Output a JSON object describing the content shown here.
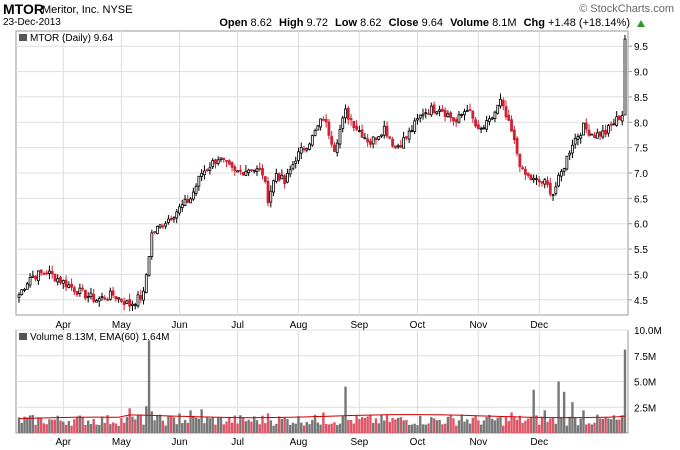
{
  "header": {
    "symbol": "MTOR",
    "company": "Meritor, Inc.",
    "exchange": "NYSE",
    "date": "23-Dec-2013",
    "brand": "© StockCharts.com",
    "open_label": "Open",
    "open": "8.62",
    "high_label": "High",
    "high": "9.72",
    "low_label": "Low",
    "low": "8.62",
    "close_label": "Close",
    "close": "9.64",
    "volume_label": "Volume",
    "volume": "8.1M",
    "chg_label": "Chg",
    "chg": "+1.48 (+18.14%)"
  },
  "price_legend": "MTOR (Daily) 9.64",
  "volume_legend": "Volume 8.13M, EMA(60) 1.64M",
  "colors": {
    "up": "#000000",
    "down": "#cc2233",
    "vol_up": "#777777",
    "vol_down": "#dd5566",
    "ema": "#cc0000",
    "grid": "#dddddd"
  },
  "chart_data": {
    "type": "line",
    "price_axis": {
      "ylim": [
        4.2,
        9.8
      ],
      "ticks": [
        "4.5",
        "5.0",
        "5.5",
        "6.0",
        "6.5",
        "7.0",
        "7.5",
        "8.0",
        "8.5",
        "9.0",
        "9.5"
      ]
    },
    "volume_axis": {
      "ylim": [
        0,
        10
      ],
      "ticks": [
        "2.5M",
        "5.0M",
        "7.5M",
        "10.0M"
      ]
    },
    "months": [
      "Apr",
      "May",
      "Jun",
      "Jul",
      "Aug",
      "Sep",
      "Oct",
      "Nov",
      "Dec"
    ],
    "close_keypoints": [
      {
        "i": 0,
        "v": 4.6
      },
      {
        "i": 4,
        "v": 4.95
      },
      {
        "i": 10,
        "v": 5.05
      },
      {
        "i": 16,
        "v": 4.85
      },
      {
        "i": 22,
        "v": 4.65
      },
      {
        "i": 28,
        "v": 4.5
      },
      {
        "i": 34,
        "v": 4.6
      },
      {
        "i": 40,
        "v": 4.4
      },
      {
        "i": 45,
        "v": 4.6
      },
      {
        "i": 48,
        "v": 5.8
      },
      {
        "i": 52,
        "v": 6.0
      },
      {
        "i": 58,
        "v": 6.3
      },
      {
        "i": 62,
        "v": 6.5
      },
      {
        "i": 66,
        "v": 7.0
      },
      {
        "i": 72,
        "v": 7.3
      },
      {
        "i": 78,
        "v": 7.0
      },
      {
        "i": 84,
        "v": 7.1
      },
      {
        "i": 88,
        "v": 7.0
      },
      {
        "i": 90,
        "v": 6.5
      },
      {
        "i": 93,
        "v": 7.0
      },
      {
        "i": 96,
        "v": 6.8
      },
      {
        "i": 100,
        "v": 7.3
      },
      {
        "i": 106,
        "v": 7.7
      },
      {
        "i": 110,
        "v": 8.1
      },
      {
        "i": 114,
        "v": 7.5
      },
      {
        "i": 118,
        "v": 8.2
      },
      {
        "i": 122,
        "v": 7.9
      },
      {
        "i": 127,
        "v": 7.6
      },
      {
        "i": 132,
        "v": 7.9
      },
      {
        "i": 136,
        "v": 7.5
      },
      {
        "i": 140,
        "v": 7.7
      },
      {
        "i": 146,
        "v": 8.2
      },
      {
        "i": 152,
        "v": 8.3
      },
      {
        "i": 158,
        "v": 8.0
      },
      {
        "i": 162,
        "v": 8.3
      },
      {
        "i": 166,
        "v": 7.8
      },
      {
        "i": 170,
        "v": 8.0
      },
      {
        "i": 174,
        "v": 8.4
      },
      {
        "i": 178,
        "v": 7.8
      },
      {
        "i": 182,
        "v": 7.0
      },
      {
        "i": 186,
        "v": 6.85
      },
      {
        "i": 190,
        "v": 6.8
      },
      {
        "i": 193,
        "v": 6.6
      },
      {
        "i": 196,
        "v": 7.0
      },
      {
        "i": 200,
        "v": 7.6
      },
      {
        "i": 204,
        "v": 7.9
      },
      {
        "i": 208,
        "v": 7.75
      },
      {
        "i": 212,
        "v": 7.8
      },
      {
        "i": 216,
        "v": 8.05
      },
      {
        "i": 218,
        "v": 8.16
      },
      {
        "i": 219,
        "v": 9.64
      }
    ],
    "volume_spikes": [
      {
        "i": 40,
        "v": 2.4
      },
      {
        "i": 44,
        "v": 1.8
      },
      {
        "i": 46,
        "v": 2.6
      },
      {
        "i": 47,
        "v": 9.0
      },
      {
        "i": 48,
        "v": 2.1
      },
      {
        "i": 58,
        "v": 1.9
      },
      {
        "i": 62,
        "v": 2.2
      },
      {
        "i": 66,
        "v": 2.3
      },
      {
        "i": 90,
        "v": 1.9
      },
      {
        "i": 110,
        "v": 2.0
      },
      {
        "i": 118,
        "v": 4.5
      },
      {
        "i": 160,
        "v": 1.8
      },
      {
        "i": 178,
        "v": 2.0
      },
      {
        "i": 186,
        "v": 4.2
      },
      {
        "i": 190,
        "v": 2.2
      },
      {
        "i": 195,
        "v": 5.0
      },
      {
        "i": 197,
        "v": 4.0
      },
      {
        "i": 200,
        "v": 3.0
      },
      {
        "i": 204,
        "v": 2.2
      },
      {
        "i": 219,
        "v": 8.1
      }
    ],
    "ema_level": 1.64,
    "bar_count": 220
  }
}
